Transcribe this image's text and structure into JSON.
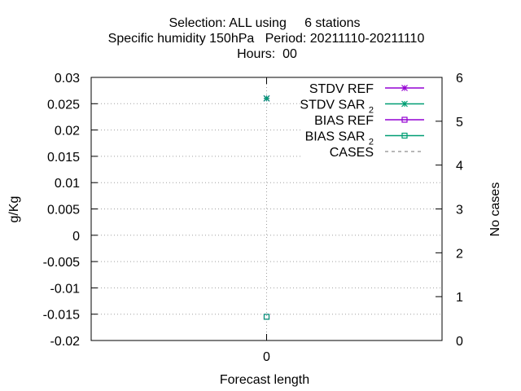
{
  "chart_data": {
    "type": "line",
    "title_lines": [
      "Selection: ALL using     6 stations",
      "Specific humidity 150hPa   Period: 20211110-20211110",
      "Hours:  00"
    ],
    "xlabel": "Forecast length",
    "ylabel": "g/Kg",
    "y2label": "No cases",
    "x_ticks": [
      0
    ],
    "xlim": [
      -1,
      1
    ],
    "ylim": [
      -0.02,
      0.03
    ],
    "y_ticks": [
      -0.02,
      -0.015,
      -0.01,
      -0.005,
      0,
      0.005,
      0.01,
      0.015,
      0.02,
      0.025,
      0.03
    ],
    "y_tick_labels": [
      "-0.02",
      "-0.015",
      "-0.01",
      "-0.005",
      "0",
      "0.005",
      "0.01",
      "0.015",
      "0.02",
      "0.025",
      "0.03"
    ],
    "y2lim": [
      0,
      6
    ],
    "y2_ticks": [
      0,
      1,
      2,
      3,
      4,
      5,
      6
    ],
    "y2_tick_labels": [
      "0",
      "1",
      "2",
      "3",
      "4",
      "5",
      "6"
    ],
    "grid": true,
    "legend_placement": "top-right",
    "series": [
      {
        "name": "STDV REF",
        "sub": "",
        "color": "#9400d3",
        "marker": "star",
        "dash": "",
        "axis": "y",
        "x": [
          0
        ],
        "values": [
          0.026
        ]
      },
      {
        "name": "STDV SAR",
        "sub": "2",
        "color": "#009e73",
        "marker": "star",
        "dash": "",
        "axis": "y",
        "x": [
          0
        ],
        "values": [
          0.026
        ]
      },
      {
        "name": "BIAS REF",
        "sub": "",
        "color": "#9400d3",
        "marker": "square",
        "dash": "",
        "axis": "y",
        "x": [
          0
        ],
        "values": [
          -0.0155
        ]
      },
      {
        "name": "BIAS SAR",
        "sub": "2",
        "color": "#009e73",
        "marker": "square",
        "dash": "",
        "axis": "y",
        "x": [
          0
        ],
        "values": [
          -0.0155
        ]
      },
      {
        "name": "CASES",
        "sub": "",
        "color": "#a0a0a0",
        "marker": "none",
        "dash": "4,4",
        "axis": "y2",
        "x": [
          0
        ],
        "values": [
          6
        ]
      }
    ]
  }
}
